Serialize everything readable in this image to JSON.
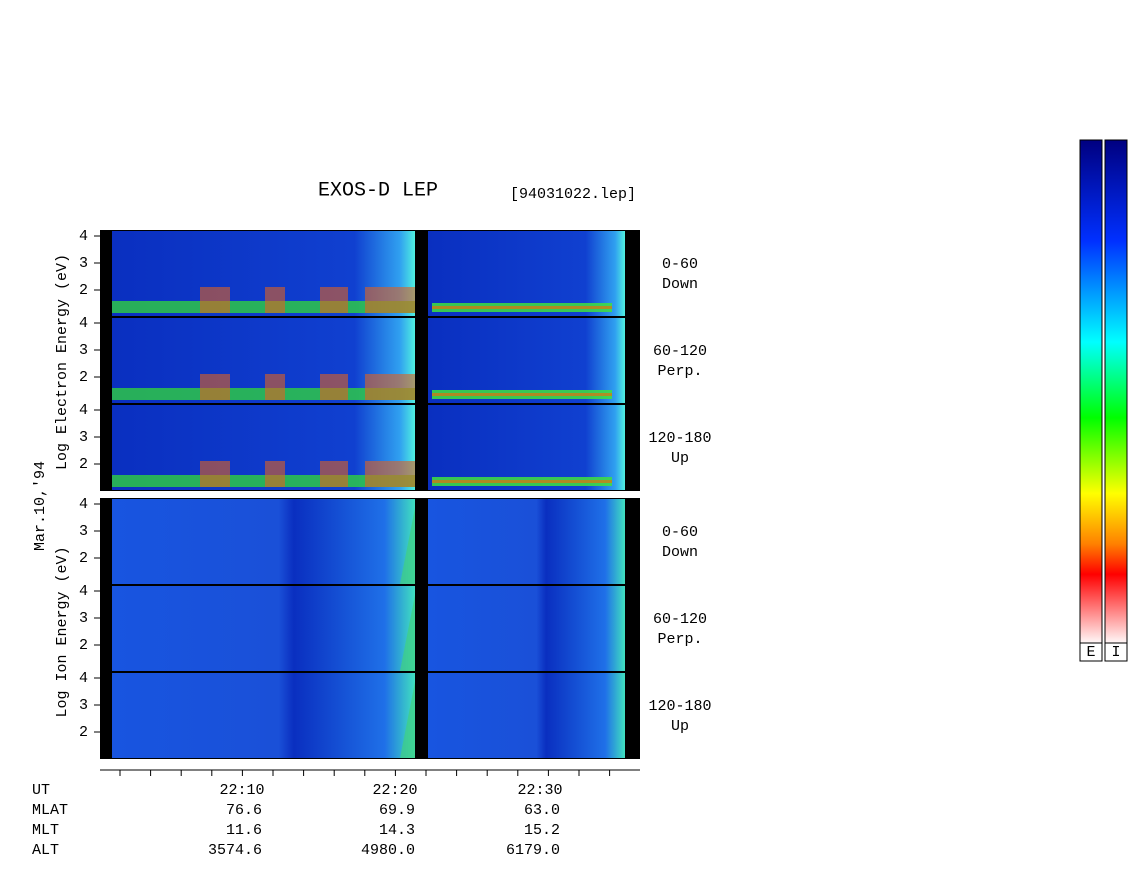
{
  "title": "EXOS-D LEP",
  "file": "[94031022.lep]",
  "date": "Mar.10,'94",
  "electron": {
    "ylabel": "Log Electron Energy (eV)",
    "panels": [
      {
        "angle": "0-60",
        "direction": "Down",
        "yticks": [
          2,
          3,
          4
        ]
      },
      {
        "angle": "60-120",
        "direction": "Perp.",
        "yticks": [
          2,
          3,
          4
        ]
      },
      {
        "angle": "120-180",
        "direction": "Up",
        "yticks": [
          2,
          3,
          4
        ]
      }
    ]
  },
  "ion": {
    "ylabel": "Log Ion Energy (eV)",
    "panels": [
      {
        "angle": "0-60",
        "direction": "Down",
        "yticks": [
          2,
          3,
          4
        ]
      },
      {
        "angle": "60-120",
        "direction": "Perp.",
        "yticks": [
          2,
          3,
          4
        ]
      },
      {
        "angle": "120-180",
        "direction": "Up",
        "yticks": [
          2,
          3,
          4
        ]
      }
    ]
  },
  "rows": [
    {
      "name": "UT",
      "values": [
        "22:10",
        "22:20",
        "22:30"
      ]
    },
    {
      "name": "MLAT",
      "values": [
        "76.6",
        "69.9",
        "63.0"
      ]
    },
    {
      "name": "MLT",
      "values": [
        "11.6",
        "14.3",
        "15.2"
      ]
    },
    {
      "name": "ALT",
      "values": [
        "3574.6",
        "4980.0",
        "6179.0"
      ]
    }
  ],
  "colorbar": [
    "E",
    "I"
  ]
}
